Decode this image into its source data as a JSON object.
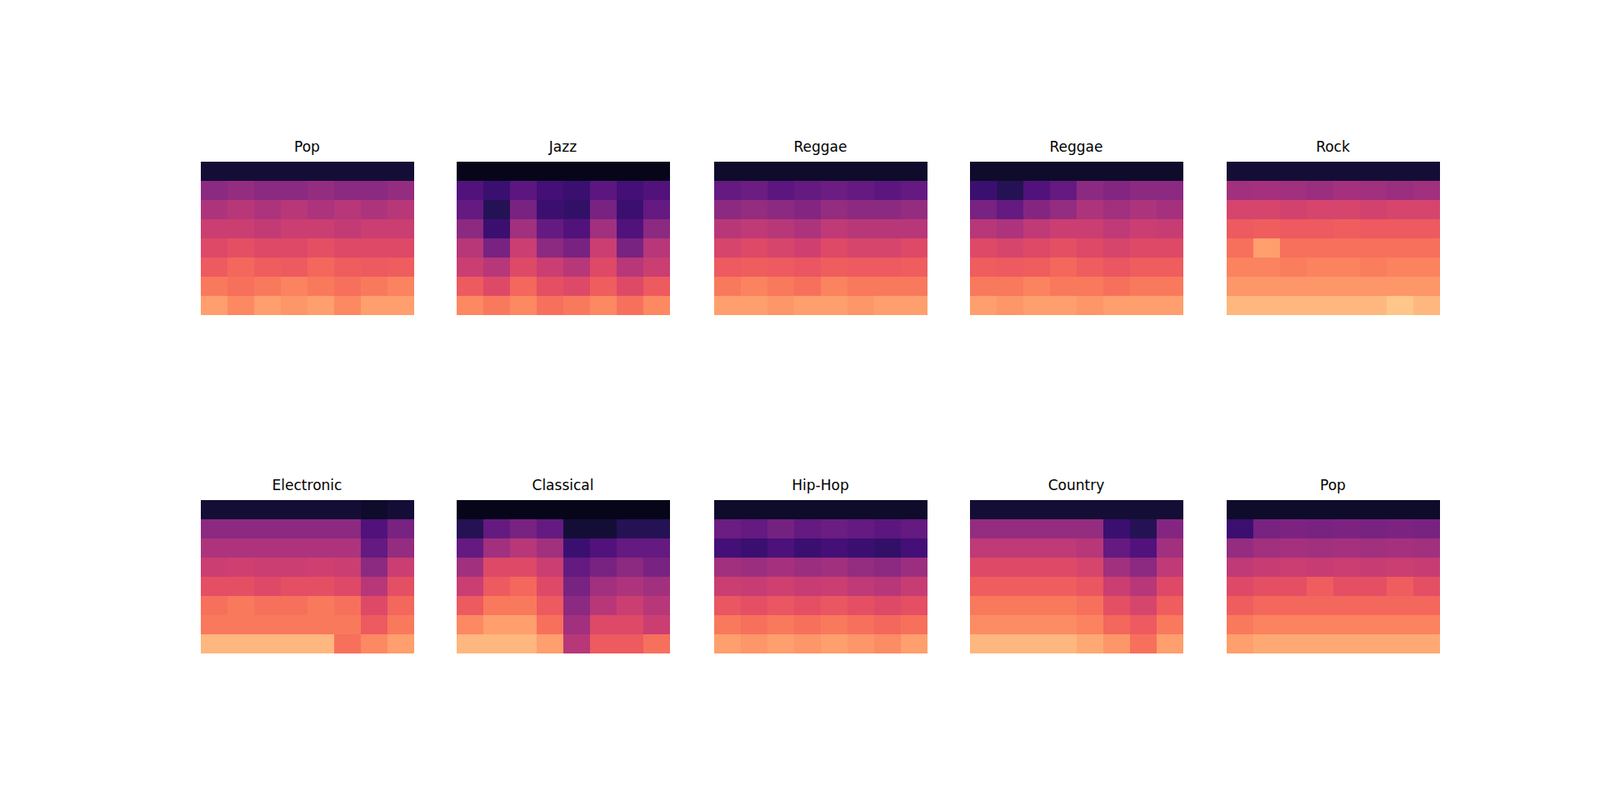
{
  "chart_data": [
    {
      "type": "spectrogram",
      "title": "Pop",
      "color": "magma",
      "tick_labels": false,
      "zlim": [
        0,
        1
      ],
      "cells": [
        [
          0.1,
          0.1,
          0.1,
          0.1,
          0.1,
          0.1,
          0.1,
          0.1
        ],
        [
          0.4,
          0.42,
          0.4,
          0.4,
          0.42,
          0.4,
          0.4,
          0.42
        ],
        [
          0.48,
          0.5,
          0.48,
          0.5,
          0.48,
          0.5,
          0.48,
          0.5
        ],
        [
          0.55,
          0.55,
          0.53,
          0.55,
          0.55,
          0.53,
          0.55,
          0.55
        ],
        [
          0.6,
          0.62,
          0.6,
          0.6,
          0.62,
          0.6,
          0.6,
          0.6
        ],
        [
          0.65,
          0.68,
          0.66,
          0.65,
          0.68,
          0.66,
          0.65,
          0.66
        ],
        [
          0.72,
          0.7,
          0.72,
          0.74,
          0.72,
          0.7,
          0.72,
          0.74
        ],
        [
          0.8,
          0.75,
          0.8,
          0.78,
          0.8,
          0.75,
          0.8,
          0.8
        ]
      ]
    },
    {
      "type": "spectrogram",
      "title": "Jazz",
      "color": "magma",
      "tick_labels": false,
      "zlim": [
        0,
        1
      ],
      "cells": [
        [
          0.05,
          0.05,
          0.05,
          0.05,
          0.05,
          0.05,
          0.05,
          0.05
        ],
        [
          0.25,
          0.2,
          0.28,
          0.22,
          0.2,
          0.28,
          0.22,
          0.25
        ],
        [
          0.3,
          0.15,
          0.35,
          0.2,
          0.18,
          0.35,
          0.2,
          0.3
        ],
        [
          0.4,
          0.2,
          0.45,
          0.3,
          0.25,
          0.45,
          0.25,
          0.4
        ],
        [
          0.5,
          0.35,
          0.55,
          0.4,
          0.35,
          0.55,
          0.35,
          0.5
        ],
        [
          0.55,
          0.5,
          0.6,
          0.55,
          0.5,
          0.6,
          0.5,
          0.55
        ],
        [
          0.65,
          0.6,
          0.68,
          0.62,
          0.6,
          0.66,
          0.6,
          0.65
        ],
        [
          0.75,
          0.72,
          0.75,
          0.7,
          0.72,
          0.75,
          0.7,
          0.75
        ]
      ]
    },
    {
      "type": "spectrogram",
      "title": "Reggae",
      "color": "magma",
      "tick_labels": false,
      "zlim": [
        0,
        1
      ],
      "cells": [
        [
          0.08,
          0.08,
          0.08,
          0.08,
          0.08,
          0.08,
          0.08,
          0.08
        ],
        [
          0.3,
          0.32,
          0.28,
          0.3,
          0.32,
          0.3,
          0.28,
          0.3
        ],
        [
          0.4,
          0.42,
          0.4,
          0.38,
          0.42,
          0.4,
          0.4,
          0.42
        ],
        [
          0.5,
          0.52,
          0.5,
          0.48,
          0.52,
          0.5,
          0.5,
          0.5
        ],
        [
          0.58,
          0.6,
          0.58,
          0.56,
          0.6,
          0.58,
          0.58,
          0.6
        ],
        [
          0.65,
          0.66,
          0.65,
          0.64,
          0.66,
          0.65,
          0.65,
          0.66
        ],
        [
          0.72,
          0.74,
          0.72,
          0.7,
          0.74,
          0.72,
          0.72,
          0.72
        ],
        [
          0.8,
          0.8,
          0.78,
          0.8,
          0.8,
          0.78,
          0.8,
          0.8
        ]
      ]
    },
    {
      "type": "spectrogram",
      "title": "Reggae",
      "color": "magma",
      "tick_labels": false,
      "zlim": [
        0,
        1
      ],
      "cells": [
        [
          0.08,
          0.08,
          0.08,
          0.08,
          0.08,
          0.08,
          0.08,
          0.08
        ],
        [
          0.2,
          0.15,
          0.25,
          0.3,
          0.4,
          0.38,
          0.4,
          0.4
        ],
        [
          0.35,
          0.3,
          0.38,
          0.42,
          0.48,
          0.45,
          0.48,
          0.46
        ],
        [
          0.5,
          0.48,
          0.52,
          0.55,
          0.55,
          0.52,
          0.55,
          0.54
        ],
        [
          0.6,
          0.58,
          0.6,
          0.62,
          0.6,
          0.58,
          0.6,
          0.6
        ],
        [
          0.66,
          0.65,
          0.66,
          0.68,
          0.66,
          0.64,
          0.66,
          0.66
        ],
        [
          0.72,
          0.72,
          0.74,
          0.72,
          0.72,
          0.7,
          0.72,
          0.72
        ],
        [
          0.8,
          0.78,
          0.8,
          0.8,
          0.78,
          0.8,
          0.8,
          0.8
        ]
      ]
    },
    {
      "type": "spectrogram",
      "title": "Rock",
      "color": "magma",
      "tick_labels": false,
      "zlim": [
        0,
        1
      ],
      "cells": [
        [
          0.1,
          0.1,
          0.1,
          0.1,
          0.1,
          0.1,
          0.1,
          0.1
        ],
        [
          0.45,
          0.46,
          0.45,
          0.44,
          0.46,
          0.45,
          0.44,
          0.45
        ],
        [
          0.58,
          0.58,
          0.57,
          0.58,
          0.58,
          0.57,
          0.58,
          0.58
        ],
        [
          0.65,
          0.66,
          0.65,
          0.65,
          0.66,
          0.65,
          0.65,
          0.65
        ],
        [
          0.7,
          0.8,
          0.7,
          0.7,
          0.7,
          0.7,
          0.7,
          0.7
        ],
        [
          0.74,
          0.74,
          0.73,
          0.74,
          0.74,
          0.73,
          0.74,
          0.74
        ],
        [
          0.78,
          0.78,
          0.78,
          0.78,
          0.78,
          0.78,
          0.78,
          0.78
        ],
        [
          0.85,
          0.85,
          0.85,
          0.85,
          0.85,
          0.85,
          0.88,
          0.85
        ]
      ]
    },
    {
      "type": "spectrogram",
      "title": "Electronic",
      "color": "magma",
      "tick_labels": false,
      "zlim": [
        0,
        1
      ],
      "cells": [
        [
          0.1,
          0.1,
          0.1,
          0.1,
          0.1,
          0.1,
          0.08,
          0.1
        ],
        [
          0.4,
          0.4,
          0.4,
          0.4,
          0.4,
          0.4,
          0.25,
          0.35
        ],
        [
          0.48,
          0.48,
          0.48,
          0.48,
          0.48,
          0.48,
          0.3,
          0.42
        ],
        [
          0.55,
          0.56,
          0.55,
          0.55,
          0.56,
          0.55,
          0.4,
          0.55
        ],
        [
          0.62,
          0.62,
          0.6,
          0.62,
          0.62,
          0.6,
          0.5,
          0.62
        ],
        [
          0.7,
          0.72,
          0.7,
          0.7,
          0.72,
          0.7,
          0.6,
          0.68
        ],
        [
          0.72,
          0.72,
          0.72,
          0.72,
          0.72,
          0.72,
          0.65,
          0.72
        ],
        [
          0.85,
          0.85,
          0.85,
          0.85,
          0.85,
          0.7,
          0.75,
          0.8
        ]
      ]
    },
    {
      "type": "spectrogram",
      "title": "Classical",
      "color": "magma",
      "tick_labels": false,
      "zlim": [
        0,
        1
      ],
      "cells": [
        [
          0.05,
          0.05,
          0.05,
          0.05,
          0.05,
          0.05,
          0.05,
          0.05
        ],
        [
          0.15,
          0.3,
          0.35,
          0.3,
          0.1,
          0.1,
          0.15,
          0.15
        ],
        [
          0.3,
          0.45,
          0.5,
          0.45,
          0.2,
          0.25,
          0.3,
          0.3
        ],
        [
          0.45,
          0.6,
          0.6,
          0.55,
          0.3,
          0.35,
          0.4,
          0.35
        ],
        [
          0.55,
          0.65,
          0.68,
          0.6,
          0.35,
          0.45,
          0.48,
          0.45
        ],
        [
          0.65,
          0.72,
          0.72,
          0.65,
          0.4,
          0.5,
          0.55,
          0.5
        ],
        [
          0.75,
          0.8,
          0.8,
          0.7,
          0.45,
          0.6,
          0.6,
          0.55
        ],
        [
          0.85,
          0.85,
          0.85,
          0.8,
          0.5,
          0.65,
          0.65,
          0.7
        ]
      ]
    },
    {
      "type": "spectrogram",
      "title": "Hip-Hop",
      "color": "magma",
      "tick_labels": false,
      "zlim": [
        0,
        1
      ],
      "cells": [
        [
          0.08,
          0.08,
          0.08,
          0.08,
          0.08,
          0.08,
          0.08,
          0.08
        ],
        [
          0.32,
          0.3,
          0.34,
          0.3,
          0.32,
          0.3,
          0.28,
          0.3
        ],
        [
          0.22,
          0.2,
          0.24,
          0.2,
          0.22,
          0.2,
          0.18,
          0.22
        ],
        [
          0.45,
          0.44,
          0.46,
          0.44,
          0.45,
          0.42,
          0.4,
          0.44
        ],
        [
          0.55,
          0.54,
          0.56,
          0.54,
          0.55,
          0.52,
          0.5,
          0.54
        ],
        [
          0.64,
          0.62,
          0.64,
          0.62,
          0.64,
          0.62,
          0.6,
          0.62
        ],
        [
          0.72,
          0.7,
          0.72,
          0.7,
          0.72,
          0.7,
          0.68,
          0.7
        ],
        [
          0.8,
          0.78,
          0.8,
          0.78,
          0.8,
          0.78,
          0.76,
          0.8
        ]
      ]
    },
    {
      "type": "spectrogram",
      "title": "Country",
      "color": "magma",
      "tick_labels": false,
      "zlim": [
        0,
        1
      ],
      "cells": [
        [
          0.1,
          0.1,
          0.1,
          0.1,
          0.1,
          0.1,
          0.1,
          0.1
        ],
        [
          0.42,
          0.42,
          0.42,
          0.42,
          0.42,
          0.2,
          0.15,
          0.38
        ],
        [
          0.52,
          0.52,
          0.52,
          0.52,
          0.5,
          0.3,
          0.25,
          0.45
        ],
        [
          0.6,
          0.6,
          0.6,
          0.6,
          0.58,
          0.45,
          0.4,
          0.52
        ],
        [
          0.66,
          0.66,
          0.66,
          0.66,
          0.64,
          0.55,
          0.5,
          0.6
        ],
        [
          0.72,
          0.72,
          0.72,
          0.72,
          0.7,
          0.62,
          0.58,
          0.66
        ],
        [
          0.76,
          0.76,
          0.76,
          0.76,
          0.74,
          0.68,
          0.65,
          0.72
        ],
        [
          0.85,
          0.85,
          0.85,
          0.85,
          0.82,
          0.78,
          0.7,
          0.8
        ]
      ]
    },
    {
      "type": "spectrogram",
      "title": "Pop",
      "color": "magma",
      "tick_labels": false,
      "zlim": [
        0,
        1
      ],
      "cells": [
        [
          0.08,
          0.08,
          0.08,
          0.08,
          0.08,
          0.08,
          0.08,
          0.08
        ],
        [
          0.2,
          0.35,
          0.36,
          0.35,
          0.36,
          0.35,
          0.36,
          0.35
        ],
        [
          0.42,
          0.45,
          0.46,
          0.45,
          0.46,
          0.45,
          0.46,
          0.45
        ],
        [
          0.52,
          0.54,
          0.55,
          0.54,
          0.55,
          0.54,
          0.55,
          0.54
        ],
        [
          0.6,
          0.62,
          0.62,
          0.66,
          0.62,
          0.62,
          0.66,
          0.62
        ],
        [
          0.66,
          0.68,
          0.68,
          0.68,
          0.68,
          0.68,
          0.68,
          0.68
        ],
        [
          0.72,
          0.74,
          0.74,
          0.74,
          0.74,
          0.74,
          0.74,
          0.74
        ],
        [
          0.8,
          0.82,
          0.82,
          0.82,
          0.82,
          0.82,
          0.82,
          0.82
        ]
      ]
    }
  ]
}
